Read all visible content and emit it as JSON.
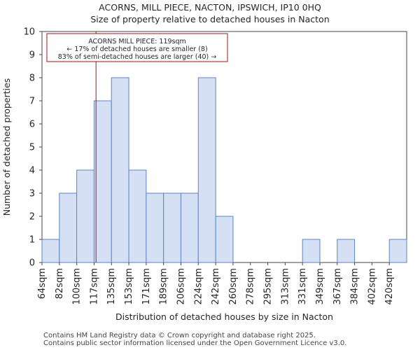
{
  "header": {
    "title": "ACORNS, MILL PIECE, NACTON, IPSWICH, IP10 0HQ",
    "subtitle": "Size of property relative to detached houses in Nacton"
  },
  "footer": {
    "line1": "Contains HM Land Registry data © Crown copyright and database right 2025.",
    "line2": "Contains public sector information licensed under the Open Government Licence v3.0."
  },
  "colors": {
    "bar_fill": "#d6e0f4",
    "bar_stroke": "#5b84c4",
    "marker": "#a31515",
    "annotation_border": "#a31515"
  },
  "chart_data": {
    "type": "bar",
    "title": "ACORNS, MILL PIECE, NACTON, IPSWICH, IP10 0HQ",
    "subtitle": "Size of property relative to detached houses in Nacton",
    "xlabel": "Distribution of detached houses by size in Nacton",
    "ylabel": "Number of detached properties",
    "categories": [
      "64sqm",
      "82sqm",
      "100sqm",
      "117sqm",
      "135sqm",
      "153sqm",
      "171sqm",
      "189sqm",
      "206sqm",
      "224sqm",
      "242sqm",
      "260sqm",
      "278sqm",
      "295sqm",
      "313sqm",
      "331sqm",
      "349sqm",
      "367sqm",
      "384sqm",
      "402sqm",
      "420sqm"
    ],
    "values": [
      1,
      3,
      4,
      7,
      8,
      4,
      3,
      3,
      3,
      8,
      2,
      0,
      0,
      0,
      0,
      1,
      0,
      1,
      0,
      0,
      1
    ],
    "ylim": [
      0,
      10
    ],
    "yticks": [
      0,
      1,
      2,
      3,
      4,
      5,
      6,
      7,
      8,
      9,
      10
    ],
    "grid": false,
    "marker": {
      "value_sqm": 119,
      "label": "ACORNS MILL PIECE: 119sqm"
    },
    "annotation": {
      "line1": "ACORNS MILL PIECE: 119sqm",
      "line2": "← 17% of detached houses are smaller (8)",
      "line3": "83% of semi-detached houses are larger (40) →"
    }
  }
}
